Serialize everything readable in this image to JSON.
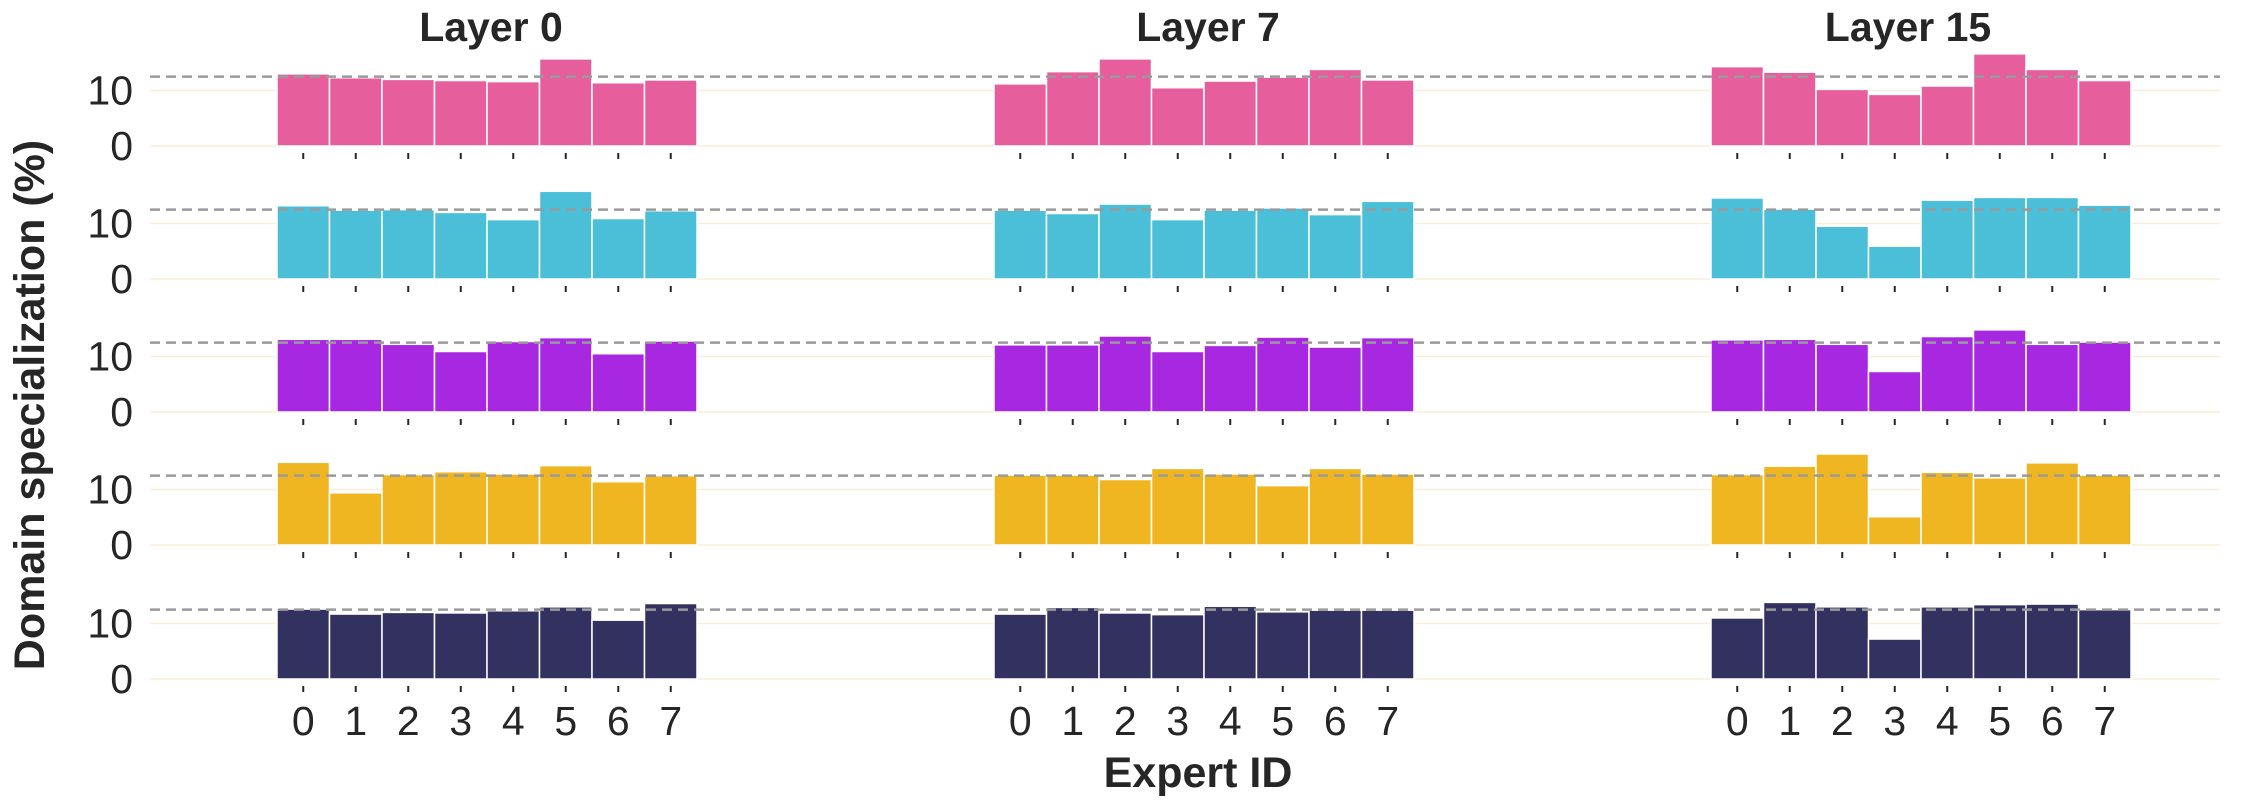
{
  "chart_data": {
    "type": "bar",
    "layers": [
      {
        "title": "Layer 0"
      },
      {
        "title": "Layer 7"
      },
      {
        "title": "Layer 15"
      }
    ],
    "xlabel": "Expert ID",
    "ylabel": "Domain specialization (%)",
    "categories": [
      "0",
      "1",
      "2",
      "3",
      "4",
      "5",
      "6",
      "7"
    ],
    "ylim": [
      0,
      16
    ],
    "yticks": [
      "0",
      "10"
    ],
    "reference_line": 12.5,
    "grid": true,
    "series": [
      {
        "color": "#e75e9c",
        "values": [
          [
            13.0,
            12.3,
            12.0,
            11.8,
            11.6,
            15.7,
            11.4,
            11.9
          ],
          [
            11.2,
            13.4,
            15.7,
            10.5,
            11.7,
            12.4,
            13.8,
            11.9
          ],
          [
            14.3,
            13.3,
            10.2,
            9.3,
            10.8,
            16.6,
            13.8,
            11.8
          ]
        ]
      },
      {
        "color": "#4bbfd8",
        "values": [
          [
            13.2,
            12.4,
            12.5,
            12.0,
            10.7,
            15.8,
            10.9,
            12.3
          ],
          [
            12.4,
            11.8,
            13.5,
            10.7,
            12.4,
            12.8,
            11.6,
            14.0
          ],
          [
            14.6,
            12.6,
            9.5,
            5.9,
            14.2,
            14.7,
            14.7,
            13.3
          ]
        ]
      },
      {
        "color": "#a728e0",
        "values": [
          [
            13.1,
            13.1,
            12.2,
            10.9,
            12.7,
            13.4,
            10.5,
            12.8
          ],
          [
            12.1,
            12.1,
            13.7,
            10.9,
            12.0,
            13.5,
            11.7,
            13.4
          ],
          [
            13.0,
            13.1,
            12.2,
            7.3,
            13.6,
            14.8,
            12.2,
            12.6
          ]
        ]
      },
      {
        "color": "#f0b622",
        "values": [
          [
            14.9,
            9.4,
            12.7,
            13.2,
            12.8,
            14.3,
            11.4,
            12.5
          ],
          [
            12.6,
            12.6,
            11.8,
            13.8,
            12.8,
            10.7,
            13.8,
            12.8
          ],
          [
            12.7,
            14.2,
            16.4,
            5.1,
            13.1,
            12.1,
            14.8,
            12.6
          ]
        ]
      },
      {
        "color": "#323160",
        "values": [
          [
            12.6,
            11.7,
            12.0,
            11.9,
            12.3,
            13.0,
            10.6,
            13.6
          ],
          [
            11.7,
            12.9,
            11.9,
            11.6,
            13.1,
            12.1,
            12.4,
            12.4
          ],
          [
            11.0,
            13.8,
            13.0,
            7.2,
            13.0,
            13.4,
            13.5,
            12.5
          ]
        ]
      }
    ]
  }
}
